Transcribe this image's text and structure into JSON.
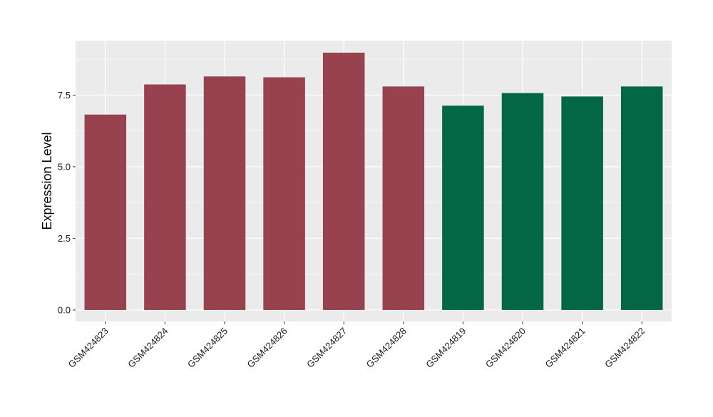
{
  "chart_data": {
    "type": "bar",
    "title": "",
    "xlabel": "",
    "ylabel": "Expression Level",
    "ylim": [
      -0.4,
      9.4
    ],
    "yticks": [
      0.0,
      2.5,
      5.0,
      7.5
    ],
    "ytick_labels": [
      "0.0",
      "2.5",
      "5.0",
      "7.5"
    ],
    "grid": true,
    "categories": [
      "GSM424823",
      "GSM424824",
      "GSM424825",
      "GSM424826",
      "GSM424827",
      "GSM424828",
      "GSM424819",
      "GSM424820",
      "GSM424821",
      "GSM424822"
    ],
    "values": [
      6.82,
      7.87,
      8.15,
      8.12,
      8.98,
      7.8,
      7.13,
      7.57,
      7.45,
      7.8
    ],
    "bar_colors": [
      "#98414f",
      "#98414f",
      "#98414f",
      "#98414f",
      "#98414f",
      "#98414f",
      "#036644",
      "#036644",
      "#036644",
      "#036644"
    ],
    "panel_background": "#ebebeb",
    "grid_color": "#ffffff"
  }
}
